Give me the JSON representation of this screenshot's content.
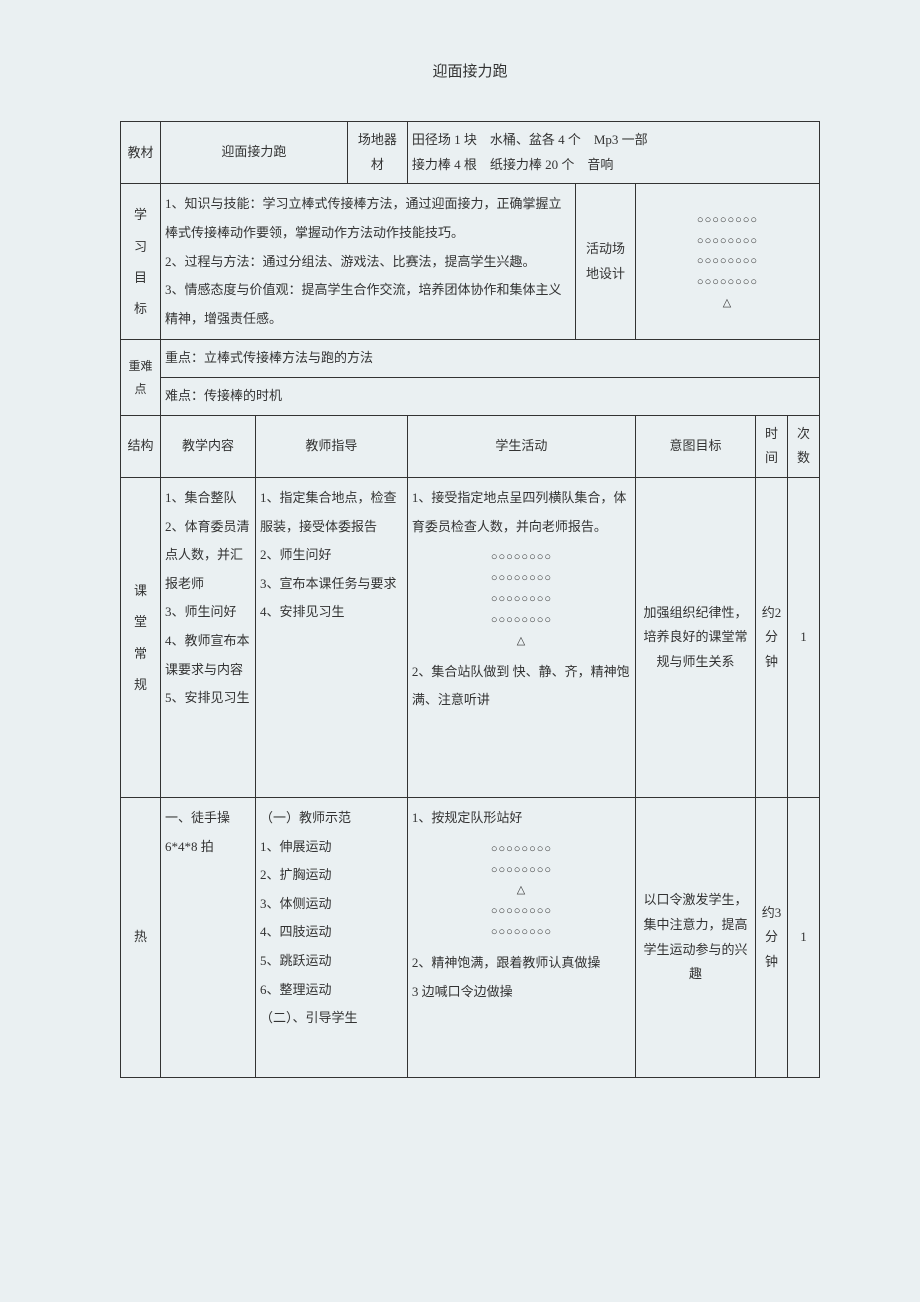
{
  "title": "迎面接力跑",
  "row1": {
    "label": "教材",
    "subject": "迎面接力跑",
    "field_label": "场地器材",
    "field_value": "田径场 1 块　水桶、盆各 4 个　Mp3 一部\n接力棒 4 根　纸接力棒 20 个　音响"
  },
  "row2": {
    "label_chars": [
      "学",
      "习",
      "目",
      "标"
    ],
    "body": "1、知识与技能：学习立棒式传接棒方法，通过迎面接力，正确掌握立棒式传接棒动作要领，掌握动作方法动作技能技巧。\n2、过程与方法：通过分组法、游戏法、比赛法，提高学生兴趣。\n3、情感态度与价值观：提高学生合作交流，培养团体协作和集体主义精神，增强责任感。",
    "venue_label": "活动场地设计",
    "venue_diagram": [
      "○○○○○○○○",
      "○○○○○○○○",
      "○○○○○○○○",
      "○○○○○○○○",
      "△"
    ]
  },
  "row3": {
    "label": "重难点",
    "focus": "重点：立棒式传接棒方法与跑的方法",
    "difficulty": "难点：传接棒的时机"
  },
  "headers": {
    "c1": "结构",
    "c2": "教学内容",
    "c3": "教师指导",
    "c4": "学生活动",
    "c5": "意图目标",
    "c6": "时间",
    "c7": "次数"
  },
  "section1": {
    "label_chars": [
      "课",
      "堂",
      "常",
      "规"
    ],
    "content": "1、集合整队\n2、体育委员清点人数，并汇报老师\n3、师生问好\n4、教师宣布本课要求与内容\n5、安排见习生",
    "guidance": "1、指定集合地点，检查服装，接受体委报告\n2、师生问好\n3、宣布本课任务与要求\n4、安排见习生",
    "activity_pre": "1、接受指定地点呈四列横队集合，体育委员检查人数，并向老师报告。",
    "activity_diagram": [
      "○○○○○○○○",
      "○○○○○○○○",
      "○○○○○○○○",
      "○○○○○○○○",
      "△"
    ],
    "activity_post": "2、集合站队做到 快、静、齐，精神饱满、注意听讲",
    "goal": "加强组织纪律性，培养良好的课堂常规与师生关系",
    "time": "约2 分钟",
    "count": "1"
  },
  "section2": {
    "label": "热",
    "content": "一、徒手操\n6*4*8 拍",
    "guidance": "（一）教师示范\n1、伸展运动\n2、扩胸运动\n3、体侧运动\n4、四肢运动\n5、跳跃运动\n6、整理运动\n（二）、引导学生",
    "activity_pre": "1、按规定队形站好",
    "activity_diagram": [
      "○○○○○○○○",
      "○○○○○○○○",
      "△",
      "○○○○○○○○",
      "○○○○○○○○"
    ],
    "activity_post": "2、精神饱满，跟着教师认真做操\n3 边喊口令边做操",
    "goal": "以口令激发学生，集中注意力，提高学生运动参与的兴趣",
    "time": "约3 分钟",
    "count": "1"
  }
}
